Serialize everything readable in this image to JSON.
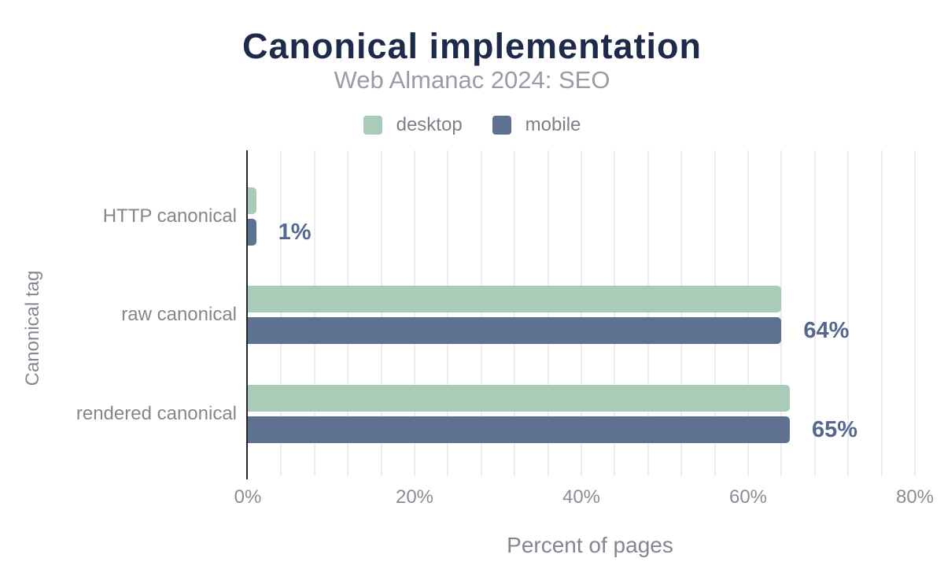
{
  "chart_data": {
    "type": "bar",
    "orientation": "horizontal",
    "title": "Canonical implementation",
    "subtitle": "Web Almanac 2024: SEO",
    "categories": [
      "HTTP canonical",
      "raw canonical",
      "rendered canonical"
    ],
    "series": [
      {
        "name": "desktop",
        "color": "#a9cbb7",
        "values": [
          1,
          64,
          65
        ]
      },
      {
        "name": "mobile",
        "color": "#5e7191",
        "values": [
          1,
          64,
          65
        ]
      }
    ],
    "value_labels": [
      "1%",
      "64%",
      "65%"
    ],
    "xlabel": "Percent of pages",
    "ylabel": "Canonical tag",
    "x_ticks": [
      {
        "value": 0,
        "label": "0%"
      },
      {
        "value": 20,
        "label": "20%"
      },
      {
        "value": 40,
        "label": "40%"
      },
      {
        "value": 60,
        "label": "60%"
      },
      {
        "value": 80,
        "label": "80%"
      }
    ],
    "xlim": [
      0,
      80
    ],
    "grid_step": 4,
    "grid_on": true,
    "legend_position": "top",
    "colors": {
      "title": "#1d2a49",
      "subtitle": "#989ca4",
      "axis_text": "#82868e",
      "data_label": "#54688f",
      "gridline": "#ededed",
      "axis_line": "#22252a",
      "background": "#ffffff"
    }
  }
}
